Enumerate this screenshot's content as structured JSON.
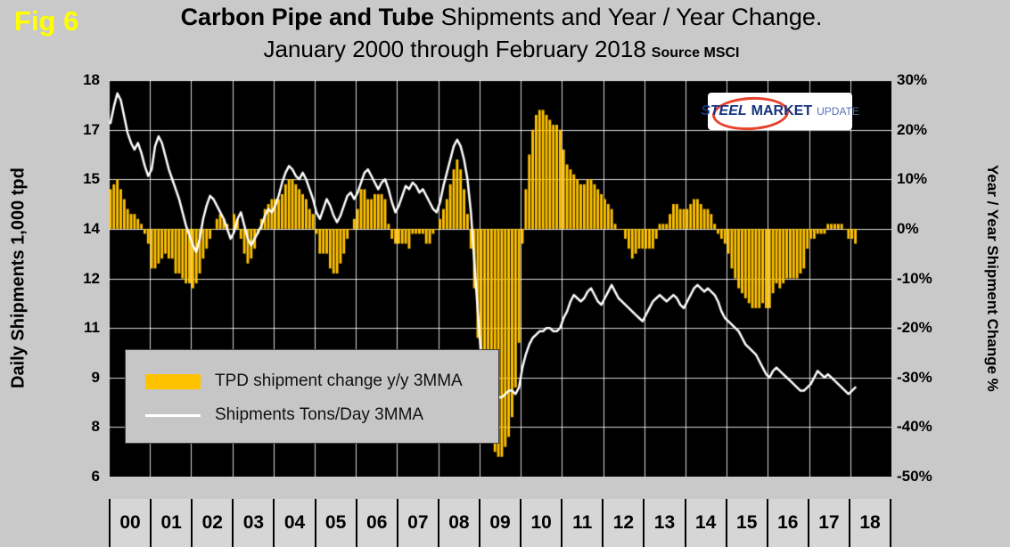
{
  "header": {
    "fig": "Fig 6",
    "title_bold": "Carbon Pipe and Tube",
    "title_rest": " Shipments and Year / Year Change.",
    "subtitle": "January 2000 through February 2018",
    "source": "Source MSCI"
  },
  "logo": {
    "word1": "STEEL",
    "word2": "MARKET",
    "word3": "UPDATE"
  },
  "chart_data": {
    "type": "combo",
    "title": "Carbon Pipe and Tube Shipments and Year / Year Change. January 2000 through February 2018",
    "x": {
      "unit": "month",
      "start": "2000-01",
      "end": "2018-02",
      "axis_span_months": 228,
      "year_labels": [
        "00",
        "01",
        "02",
        "03",
        "04",
        "05",
        "06",
        "07",
        "08",
        "09",
        "10",
        "11",
        "12",
        "13",
        "14",
        "15",
        "16",
        "17",
        "18"
      ]
    },
    "axes": {
      "left": {
        "label": "Daily Shipments 1,000 tpd",
        "min": 6,
        "max": 18,
        "tick_labels": [
          "18",
          "17",
          "15",
          "14",
          "12",
          "11",
          "9",
          "8",
          "6"
        ]
      },
      "right": {
        "label": "Year / Year Shipment Change %",
        "min": -50,
        "max": 30,
        "tick_labels": [
          "30%",
          "20%",
          "10%",
          "0%",
          "-10%",
          "-20%",
          "-30%",
          "-40%",
          "-50%"
        ]
      }
    },
    "grid": {
      "color": "#ffffff",
      "background": "#000000"
    },
    "series": [
      {
        "name": "TPD shipment change y/y 3MMA",
        "type": "bar",
        "axis": "right",
        "color": "#ffc200",
        "values": [
          8,
          9,
          10,
          8,
          6,
          4,
          3,
          3,
          2,
          1,
          -1,
          -3,
          -8,
          -8,
          -7,
          -6,
          -5,
          -6,
          -6,
          -9,
          -9,
          -10,
          -11,
          -11,
          -12,
          -11,
          -9,
          -6,
          -4,
          -2,
          0,
          2,
          3,
          2,
          1,
          0,
          3,
          2,
          -2,
          -5,
          -7,
          -6,
          -4,
          -1,
          2,
          4,
          5,
          6,
          6,
          6,
          7,
          9,
          10,
          10,
          9,
          8,
          7,
          6,
          4,
          3,
          -1,
          -5,
          -5,
          -5,
          -8,
          -9,
          -9,
          -7,
          -5,
          -2,
          0,
          2,
          4,
          8,
          8,
          6,
          6,
          7,
          7,
          7,
          6,
          1,
          -2,
          -3,
          -3,
          -3,
          -3,
          -4,
          -1,
          -1,
          -1,
          -1,
          -3,
          -3,
          -1,
          0,
          2,
          4,
          6,
          9,
          12,
          14,
          12,
          8,
          3,
          -4,
          -12,
          -22,
          -29,
          -35,
          -39,
          -43,
          -45,
          -46,
          -46,
          -44,
          -42,
          -38,
          -32,
          -23,
          -3,
          8,
          15,
          20,
          23,
          24,
          24,
          23,
          22,
          21,
          21,
          20,
          16,
          13,
          12,
          11,
          10,
          9,
          9,
          10,
          10,
          9,
          8,
          7,
          6,
          5,
          4,
          1,
          0,
          0,
          -2,
          -4,
          -6,
          -5,
          -4,
          -4,
          -4,
          -4,
          -4,
          -2,
          1,
          1,
          1,
          3,
          5,
          5,
          4,
          4,
          4,
          5,
          6,
          6,
          5,
          4,
          4,
          3,
          1,
          -1,
          -2,
          -3,
          -5,
          -8,
          -10,
          -12,
          -13,
          -14,
          -15,
          -16,
          -16,
          -16,
          -15,
          -16,
          -16,
          -13,
          -11,
          -12,
          -11,
          -10,
          -10,
          -10,
          -10,
          -9,
          -8,
          -4,
          -2,
          -2,
          -1,
          -1,
          -1,
          1,
          1,
          1,
          1,
          1,
          0,
          -2,
          -2,
          -3
        ]
      },
      {
        "name": "Shipments Tons/Day 3MMA",
        "type": "line",
        "axis": "left",
        "color": "#ffffff",
        "values": [
          16.7,
          17.2,
          17.6,
          17.4,
          16.9,
          16.4,
          16.1,
          15.9,
          16.1,
          15.8,
          15.4,
          15.1,
          15.3,
          16.0,
          16.3,
          16.1,
          15.7,
          15.3,
          15.0,
          14.7,
          14.4,
          14.0,
          13.6,
          13.3,
          13.0,
          12.8,
          13.2,
          13.8,
          14.2,
          14.5,
          14.4,
          14.2,
          14.0,
          13.8,
          13.5,
          13.2,
          13.4,
          13.8,
          14.0,
          13.6,
          13.2,
          13.0,
          13.2,
          13.4,
          13.6,
          13.9,
          14.1,
          14.0,
          14.2,
          14.5,
          14.9,
          15.2,
          15.4,
          15.3,
          15.1,
          15.0,
          15.2,
          15.0,
          14.7,
          14.4,
          14.0,
          13.8,
          14.1,
          14.4,
          14.2,
          13.9,
          13.7,
          13.9,
          14.2,
          14.5,
          14.6,
          14.4,
          14.6,
          14.9,
          15.2,
          15.3,
          15.1,
          14.9,
          14.7,
          14.9,
          15.0,
          14.7,
          14.3,
          14.0,
          14.2,
          14.5,
          14.8,
          14.7,
          14.9,
          14.8,
          14.6,
          14.7,
          14.5,
          14.3,
          14.1,
          14.0,
          14.3,
          14.8,
          15.2,
          15.6,
          16.0,
          16.2,
          16.0,
          15.6,
          15.0,
          14.0,
          12.5,
          11.0,
          9.6,
          9.0,
          8.7,
          8.5,
          8.4,
          8.4,
          8.4,
          8.5,
          8.6,
          8.6,
          8.5,
          8.7,
          9.3,
          9.7,
          10.0,
          10.2,
          10.3,
          10.4,
          10.4,
          10.5,
          10.5,
          10.4,
          10.4,
          10.5,
          10.8,
          11.0,
          11.3,
          11.5,
          11.4,
          11.3,
          11.4,
          11.6,
          11.7,
          11.5,
          11.3,
          11.2,
          11.4,
          11.6,
          11.8,
          11.6,
          11.4,
          11.3,
          11.2,
          11.1,
          11.0,
          10.9,
          10.8,
          10.7,
          10.9,
          11.1,
          11.3,
          11.4,
          11.5,
          11.4,
          11.3,
          11.4,
          11.5,
          11.4,
          11.2,
          11.1,
          11.3,
          11.5,
          11.7,
          11.8,
          11.7,
          11.6,
          11.7,
          11.6,
          11.5,
          11.3,
          11.0,
          10.8,
          10.7,
          10.6,
          10.5,
          10.4,
          10.2,
          10.0,
          9.9,
          9.8,
          9.7,
          9.5,
          9.3,
          9.1,
          9.0,
          9.2,
          9.3,
          9.2,
          9.1,
          9.0,
          8.9,
          8.8,
          8.7,
          8.6,
          8.6,
          8.7,
          8.8,
          9.0,
          9.2,
          9.1,
          9.0,
          9.1,
          9.0,
          8.9,
          8.8,
          8.7,
          8.6,
          8.5,
          8.6,
          8.7
        ]
      }
    ],
    "legend_position": "inside-lower-left",
    "grid_on": true
  }
}
